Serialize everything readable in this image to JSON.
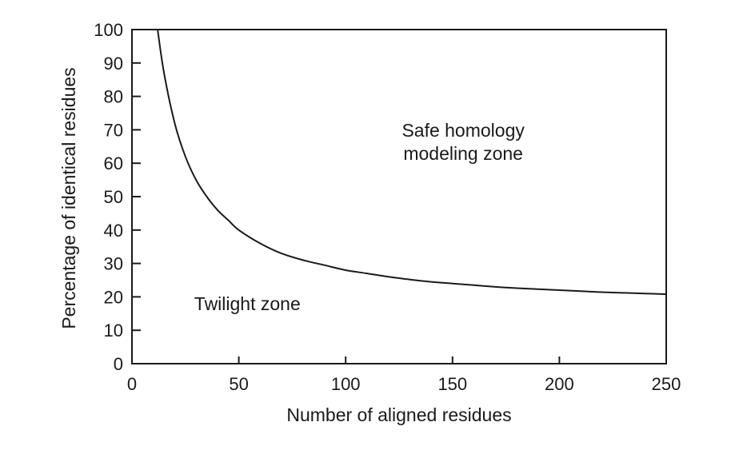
{
  "chart_data": {
    "type": "line",
    "title": "",
    "xlabel": "Number of aligned residues",
    "ylabel": "Percentage of identical residues",
    "xlim": [
      0,
      250
    ],
    "ylim": [
      0,
      100
    ],
    "x_ticks": [
      0,
      50,
      100,
      150,
      200,
      250
    ],
    "y_ticks": [
      0,
      10,
      20,
      30,
      40,
      50,
      60,
      70,
      80,
      90,
      100
    ],
    "grid": false,
    "legend": "none",
    "series": [
      {
        "x": [
          12,
          15,
          20,
          25,
          30,
          35,
          40,
          45,
          50,
          60,
          70,
          80,
          90,
          100,
          110,
          120,
          130,
          140,
          150,
          160,
          170,
          180,
          190,
          200,
          210,
          220,
          230,
          240,
          250
        ],
        "y": [
          100,
          87,
          72,
          62,
          55,
          50,
          46,
          43,
          40,
          36,
          33,
          31,
          29.5,
          28,
          27,
          26,
          25.2,
          24.5,
          24,
          23.5,
          23,
          22.6,
          22.3,
          22,
          21.7,
          21.4,
          21.2,
          21,
          20.8
        ],
        "color": "#1a1a1a"
      }
    ],
    "annotations": [
      {
        "text": "Safe homology",
        "x": 155,
        "y": 68
      },
      {
        "text": "modeling zone",
        "x": 155,
        "y": 61
      },
      {
        "text": "Twilight zone",
        "x": 54,
        "y": 16
      }
    ]
  }
}
